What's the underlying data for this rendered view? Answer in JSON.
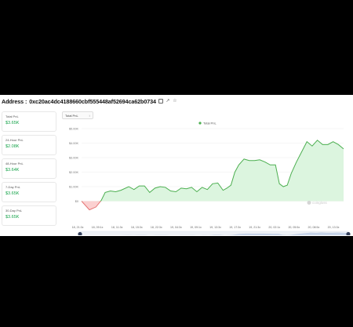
{
  "address": {
    "label": "Address :",
    "value": "0xc20ac4dc4188660cbf555448af52694ca62b0734"
  },
  "icons": {
    "copy": "copy-icon",
    "external": "external-link-icon",
    "star": "star-icon"
  },
  "stats": [
    {
      "label": "Total PnL",
      "value": "$3.65K"
    },
    {
      "label": "24-Hour PnL",
      "value": "$2.08K"
    },
    {
      "label": "48-Hour PnL",
      "value": "$3.64K"
    },
    {
      "label": "7-Day PnL",
      "value": "$3.65K"
    },
    {
      "label": "30-Day PnL",
      "value": "$3.65K"
    }
  ],
  "dropdown": {
    "selected": "Total PnL"
  },
  "watermark": "coingloss",
  "colors": {
    "positive": "#16a34a",
    "fill": "#dcf5df",
    "line": "#4caf50",
    "negative": "#e57373",
    "negative_fill": "#fbd0d0"
  },
  "chart_data": {
    "type": "area",
    "legend": [
      "Total PnL"
    ],
    "legend_position": "top-center",
    "grid": true,
    "y_ticks": [
      "$5.00K",
      "$4.00K",
      "$3.00K",
      "$2.00K",
      "$1.00K",
      "$0"
    ],
    "ylim": [
      -1000,
      5000
    ],
    "x_ticks": [
      "18, 21:3x",
      "18, 09:1x",
      "18, 11:3x",
      "18, 15:3x",
      "18, 22:3x",
      "19, 04:3x",
      "19, 09:1x",
      "19, 13:3x",
      "19, 17:3x",
      "19, 21:3x",
      "20, 02:1x",
      "20, 05:5x",
      "20, 08:5x",
      "20, 13:3x"
    ],
    "series": [
      {
        "name": "Total PnL",
        "x": [
          0,
          0.03,
          0.055,
          0.075,
          0.09,
          0.11,
          0.13,
          0.15,
          0.18,
          0.2,
          0.22,
          0.24,
          0.26,
          0.28,
          0.3,
          0.32,
          0.34,
          0.36,
          0.38,
          0.4,
          0.42,
          0.44,
          0.46,
          0.48,
          0.5,
          0.52,
          0.54,
          0.555,
          0.57,
          0.585,
          0.6,
          0.62,
          0.64,
          0.66,
          0.68,
          0.7,
          0.72,
          0.74,
          0.755,
          0.77,
          0.785,
          0.8,
          0.82,
          0.84,
          0.86,
          0.88,
          0.9,
          0.92,
          0.94,
          0.96,
          0.98,
          1.0
        ],
        "values": [
          0,
          -600,
          -400,
          50,
          600,
          700,
          650,
          750,
          1000,
          800,
          1050,
          1050,
          600,
          900,
          1000,
          950,
          700,
          650,
          900,
          850,
          950,
          650,
          950,
          800,
          1200,
          1250,
          750,
          900,
          1100,
          2000,
          2500,
          2900,
          2800,
          2800,
          2850,
          2700,
          2500,
          2500,
          1200,
          1000,
          1100,
          1900,
          2700,
          3400,
          4100,
          3800,
          4200,
          3900,
          3900,
          4100,
          3900,
          3600
        ]
      }
    ]
  }
}
